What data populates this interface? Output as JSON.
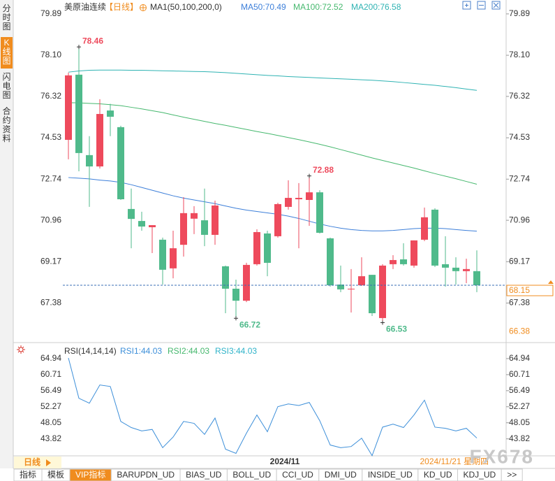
{
  "sidebar_tabs": [
    "分时图",
    "K线图",
    "闪电图",
    "合约资料"
  ],
  "active_sidebar_tab": 1,
  "chart_data": [
    {
      "type": "candlestick",
      "title": "美原油连续",
      "period": "【日线】",
      "indicator": "MA1(50,100,200,0)",
      "categories": [
        null,
        null,
        null,
        null,
        null,
        null,
        null,
        null,
        null,
        null,
        null,
        null,
        null,
        null,
        null,
        null,
        null,
        null,
        null,
        null,
        null,
        "2024/11",
        null,
        null,
        null,
        null,
        null,
        null,
        null,
        null,
        null,
        null,
        null,
        null,
        null,
        null,
        null,
        null,
        null,
        null
      ],
      "open": [
        74.44,
        77.26,
        73.78,
        73.29,
        75.71,
        74.99,
        71.45,
        70.93,
        70.66,
        70.12,
        68.88,
        69.9,
        71.03,
        70.96,
        70.33,
        68.97,
        68.0,
        67.48,
        69.06,
        70.39,
        70.27,
        71.54,
        71.87,
        71.84,
        72.17,
        70.18,
        68.18,
        67.97,
        68.15,
        68.6,
        66.73,
        69.06,
        69.27,
        69.0,
        70.12,
        71.42,
        69.06,
        68.91,
        68.76,
        68.76
      ],
      "high": [
        77.35,
        78.46,
        74.6,
        76.2,
        76.0,
        75.05,
        72.33,
        71.33,
        70.75,
        70.21,
        70.51,
        71.96,
        71.57,
        72.33,
        71.81,
        69.0,
        68.39,
        69.12,
        70.57,
        70.51,
        71.72,
        72.69,
        72.57,
        72.88,
        72.26,
        70.21,
        69.0,
        68.85,
        69.36,
        68.6,
        69.06,
        69.45,
        69.97,
        70.09,
        71.51,
        71.48,
        70.27,
        69.36,
        69.3,
        69.66
      ],
      "low": [
        73.6,
        73.08,
        71.54,
        73.2,
        74.6,
        71.84,
        69.75,
        70.51,
        69.54,
        68.18,
        68.45,
        69.39,
        70.36,
        69.84,
        69.9,
        66.94,
        66.72,
        67.42,
        69.0,
        68.54,
        70.21,
        71.42,
        69.75,
        70.72,
        70.39,
        68.09,
        67.85,
        66.97,
        68.12,
        66.82,
        66.53,
        68.85,
        69.0,
        68.91,
        70.06,
        68.94,
        68.09,
        68.18,
        68.24,
        67.85
      ],
      "close": [
        77.23,
        73.87,
        73.29,
        75.56,
        75.44,
        71.87,
        71.02,
        70.69,
        70.75,
        68.82,
        69.75,
        71.27,
        71.27,
        70.33,
        71.6,
        68.0,
        67.48,
        69.03,
        70.45,
        69.12,
        71.66,
        71.93,
        71.93,
        72.17,
        70.42,
        68.15,
        67.97,
        68.0,
        68.54,
        66.94,
        69.0,
        69.24,
        69.06,
        70.09,
        71.09,
        69.0,
        68.91,
        68.76,
        68.85,
        68.15
      ],
      "up_color": "#ee4a5c",
      "down_color": "#4fba8b",
      "series": [
        {
          "name": "MA50:70.49",
          "color": "#3d7fd9",
          "values": [
            72.81,
            72.78,
            72.75,
            72.7,
            72.66,
            72.6,
            72.5,
            72.38,
            72.26,
            72.14,
            72.02,
            71.92,
            71.84,
            71.76,
            71.68,
            71.58,
            71.48,
            71.4,
            71.34,
            71.28,
            71.22,
            71.14,
            71.04,
            70.92,
            70.8,
            70.7,
            70.62,
            70.56,
            70.52,
            70.5,
            70.5,
            70.52,
            70.56,
            70.6,
            70.62,
            70.62,
            70.6,
            70.56,
            70.52,
            70.49
          ]
        },
        {
          "name": "MA100:72.52",
          "color": "#46b86e",
          "values": [
            76.05,
            76.04,
            76.02,
            76.0,
            75.96,
            75.92,
            75.85,
            75.78,
            75.7,
            75.62,
            75.52,
            75.42,
            75.33,
            75.24,
            75.15,
            75.07,
            74.98,
            74.89,
            74.8,
            74.72,
            74.63,
            74.54,
            74.45,
            74.35,
            74.25,
            74.14,
            74.02,
            73.9,
            73.78,
            73.66,
            73.55,
            73.44,
            73.33,
            73.22,
            73.1,
            72.98,
            72.87,
            72.76,
            72.64,
            72.52
          ]
        },
        {
          "name": "MA200:76.58",
          "color": "#2fb3b3",
          "values": [
            77.37,
            77.42,
            77.45,
            77.46,
            77.46,
            77.46,
            77.45,
            77.45,
            77.44,
            77.43,
            77.42,
            77.41,
            77.4,
            77.39,
            77.37,
            77.35,
            77.32,
            77.29,
            77.26,
            77.23,
            77.21,
            77.18,
            77.16,
            77.14,
            77.12,
            77.1,
            77.08,
            77.06,
            77.04,
            77.02,
            76.99,
            76.96,
            76.92,
            76.88,
            76.84,
            76.8,
            76.75,
            76.7,
            76.64,
            76.58
          ]
        }
      ],
      "ylim": [
        65.73,
        80.34
      ],
      "yticks": [
        67.38,
        69.17,
        70.96,
        72.74,
        74.53,
        76.32,
        {
          "value": 78.1,
          "label": "78.10"
        },
        79.89
      ],
      "annotations": [
        78.46,
        72.88,
        66.72,
        66.53
      ],
      "last_price": 68.15,
      "axis_low": 66.38,
      "current_date": "2024/11/21 星期四"
    },
    {
      "type": "line",
      "title": "RSI(14,14,14)",
      "series": [
        {
          "name": "RSI1:44.03",
          "color": "#3d8fd9",
          "values": [
            65.1,
            54.5,
            53.2,
            58.0,
            57.6,
            48.4,
            46.8,
            45.9,
            46.3,
            41.5,
            44.3,
            48.4,
            47.9,
            45.0,
            49.3,
            41.1,
            40.0,
            45.3,
            50.1,
            45.7,
            52.3,
            53.0,
            52.6,
            53.4,
            48.6,
            42.2,
            41.5,
            41.8,
            44.0,
            39.4,
            46.9,
            47.7,
            46.8,
            50.1,
            54.0,
            46.9,
            46.6,
            45.9,
            46.6,
            44.03
          ]
        },
        {
          "name": "RSI2:44.03",
          "color": "#46b86e"
        },
        {
          "name": "RSI3:44.03",
          "color": "#2fb3c9"
        }
      ],
      "ylim": [
        38.8,
        68.6
      ],
      "yticks": [
        43.82,
        48.05,
        52.27,
        56.49,
        60.71,
        64.94
      ]
    }
  ],
  "footer": {
    "period": "日线",
    "tabs": [
      "指标",
      "模板",
      "VIP指标",
      "BARUPDN_UD",
      "BIAS_UD",
      "BOLL_UD",
      "CCI_UD",
      "DMI_UD",
      "INSIDE_UD",
      "KD_UD",
      "KDJ_UD",
      ">>"
    ],
    "active_tab": 2,
    "watermark": "FX678"
  }
}
